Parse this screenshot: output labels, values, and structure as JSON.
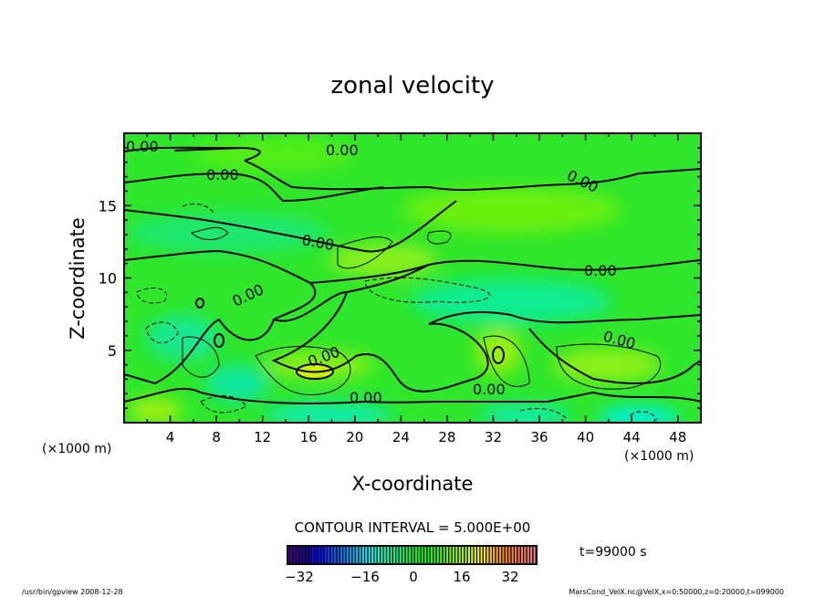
{
  "chart_data": {
    "type": "heatmap",
    "title": "zonal velocity",
    "xlabel": "X-coordinate",
    "ylabel": "Z-coordinate",
    "x_unit_left": "(×1000 m)",
    "x_unit_right": "(×1000 m)",
    "xlim": [
      0,
      50
    ],
    "ylim": [
      0,
      20
    ],
    "x_ticks": [
      "4",
      "8",
      "12",
      "16",
      "20",
      "24",
      "28",
      "32",
      "36",
      "40",
      "44",
      "48"
    ],
    "x_tick_values": [
      4,
      8,
      12,
      16,
      20,
      24,
      28,
      32,
      36,
      40,
      44,
      48
    ],
    "y_ticks": [
      "5",
      "10",
      "15"
    ],
    "y_tick_values": [
      5,
      10,
      15
    ],
    "contour_interval_text": "CONTOUR INTERVAL = 5.000E+00",
    "contour_interval": 5,
    "contour_labels": [
      "0.00",
      "0.00",
      "0.00",
      "0.00",
      "0.00",
      "0.00",
      "0.00",
      "0.00",
      "0.00",
      "0.00",
      "0.00"
    ],
    "colorbar": {
      "range": [
        -40,
        40
      ],
      "ticks": [
        "−32",
        "−16",
        "0",
        "16",
        "32"
      ],
      "tick_values": [
        -32,
        -16,
        0,
        16,
        32
      ],
      "colormap": "rainbow",
      "low_color": "#6a00a0",
      "high_color": "#ff9090"
    },
    "time_label": "t=99000 s",
    "grid": false
  },
  "footer": {
    "left": "/usr/bin/gpview  2008-12-28",
    "right": "MarsCond_VelX.nc@VelX,x=0:50000,z=0:20000,t=099000"
  }
}
